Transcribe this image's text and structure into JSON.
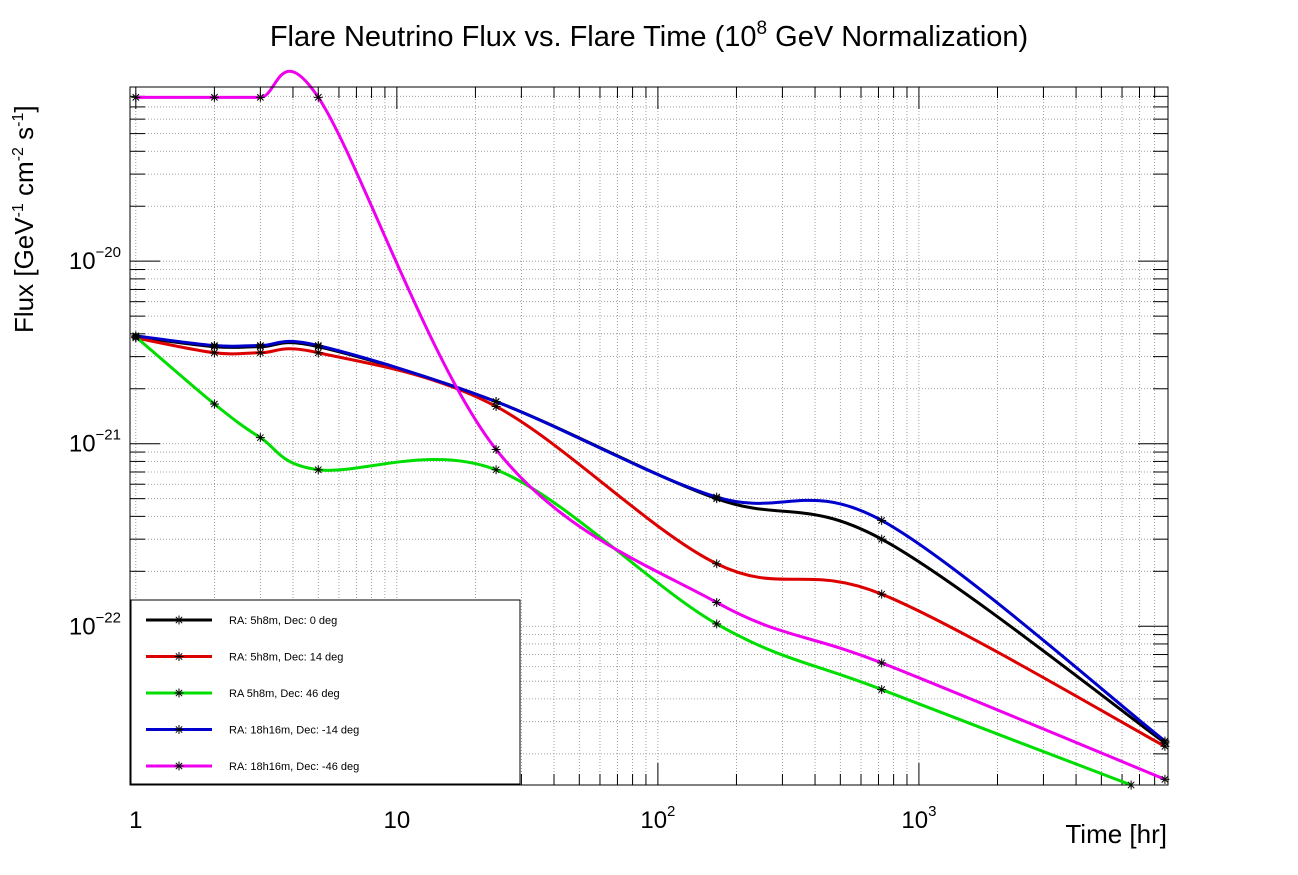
{
  "chart_data": {
    "type": "line",
    "title": {
      "prefix": "Flare Neutrino Flux vs. Flare Time (10",
      "sup": "8",
      "suffix": " GeV Normalization)"
    },
    "xlabel": "Time [hr]",
    "ylabel": {
      "p1": "Flux [GeV",
      "s1": "-1",
      "p2": " cm",
      "s2": "-2",
      "p3": " s",
      "s3": "-1",
      "p4": "]"
    },
    "x_scale": "log",
    "y_scale": "log",
    "xlim": [
      0.95,
      9000
    ],
    "ylim": [
      1.35e-23,
      9e-20
    ],
    "grid": true,
    "x_ticks": [
      {
        "value": 1,
        "base": "1",
        "exp": ""
      },
      {
        "value": 10,
        "base": "10",
        "exp": ""
      },
      {
        "value": 100,
        "base": "10",
        "exp": "2"
      },
      {
        "value": 1000,
        "base": "10",
        "exp": "3"
      }
    ],
    "y_ticks": [
      {
        "value": 1e-20,
        "base": "10",
        "exp": "−20"
      },
      {
        "value": 1e-21,
        "base": "10",
        "exp": "−21"
      },
      {
        "value": 1e-22,
        "base": "10",
        "exp": "−22"
      }
    ],
    "legend_position": "bottom-left",
    "series": [
      {
        "name": "RA: 5h8m, Dec: 0 deg",
        "color": "#000000",
        "x": [
          1,
          2,
          3,
          5,
          24,
          168,
          720,
          8760
        ],
        "y": [
          3.85e-21,
          3.4e-21,
          3.4e-21,
          3.4e-21,
          1.7e-21,
          5e-22,
          3e-22,
          2.3e-23
        ]
      },
      {
        "name": "RA: 5h8m, Dec: 14 deg",
        "color": "#dd0000",
        "x": [
          1,
          2,
          3,
          5,
          24,
          168,
          720,
          8760
        ],
        "y": [
          3.8e-21,
          3.15e-21,
          3.15e-21,
          3.15e-21,
          1.6e-21,
          2.2e-22,
          1.5e-22,
          2.2e-23
        ]
      },
      {
        "name": "RA 5h8m, Dec: 46 deg",
        "color": "#00dd00",
        "x": [
          1,
          2,
          3,
          5,
          24,
          168,
          720,
          6500
        ],
        "y": [
          3.85e-21,
          1.65e-21,
          1.08e-21,
          7.2e-22,
          7.2e-22,
          1.03e-22,
          4.5e-23,
          1.35e-23
        ]
      },
      {
        "name": "RA: 18h16m, Dec: -14 deg",
        "color": "#0000cc",
        "x": [
          1,
          2,
          3,
          5,
          24,
          168,
          720,
          8760
        ],
        "y": [
          3.9e-21,
          3.45e-21,
          3.45e-21,
          3.45e-21,
          1.7e-21,
          5.1e-22,
          3.8e-22,
          2.35e-23
        ]
      },
      {
        "name": "RA: 18h16m, Dec: -46 deg",
        "color": "#ee00ee",
        "x": [
          1,
          2,
          3,
          5,
          24,
          168,
          720,
          8760
        ],
        "y": [
          7.9e-20,
          7.9e-20,
          7.9e-20,
          7.9e-20,
          9.3e-22,
          1.35e-22,
          6.3e-23,
          1.45e-23
        ]
      }
    ]
  }
}
